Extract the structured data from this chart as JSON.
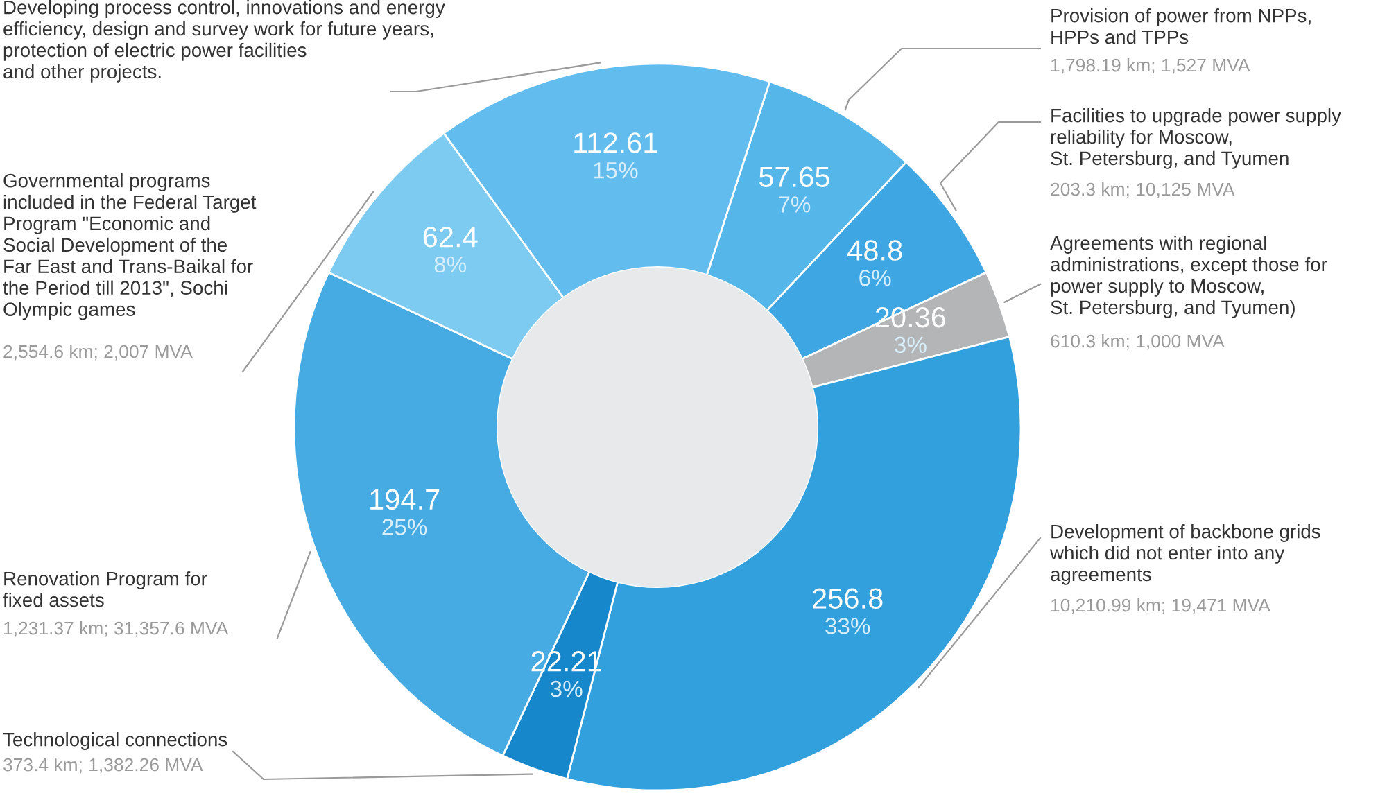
{
  "chart_data": {
    "type": "donut",
    "categories": [
      "Provision of power from NPPs,\nHPPs and TPPs",
      "Facilities to upgrade power supply\nreliability for Moscow,\nSt. Petersburg, and Tyumen",
      "Agreements with regional\nadministrations, except those for\npower supply to Moscow,\nSt. Petersburg, and Tyumen)",
      "Development of backbone grids\nwhich did not enter into any\nagreements",
      "Technological connections",
      "Renovation Program for\nfixed assets",
      "Governmental programs\nincluded in the Federal Target\nProgram \"Economic and\nSocial Development of the\nFar East and Trans-Baikal for\nthe Period till 2013\", Sochi\nOlympic games",
      "Developing process control, innovations and energy\nefficiency, design and survey work for future years,\nprotection of electric power facilities\nand other projects."
    ],
    "values": [
      7,
      6,
      3,
      33,
      3,
      25,
      8,
      15
    ],
    "colors": [
      "#55b6ea",
      "#3ea6e2",
      "#b3b5b7",
      "#31a0dc",
      "#1787cb",
      "#46aae3",
      "#7ecbf2",
      "#62bdee"
    ],
    "value_labels": [
      "57.65\n7%",
      "48.8\n6%",
      "20.36\n3%",
      "256.8\n33%",
      "22.21\n3%",
      "194.7\n25%",
      "62.4\n8%",
      "112.61\n15%"
    ],
    "annotations": [
      "1,798.19 km; 1,527 MVA",
      "203.3 km; 10,125 MVA",
      "610.3 km; 1,000 MVA",
      "10,210.99 km; 19,471 MVA",
      "373.4 km; 1,382.26 MVA",
      "1,231.37 km; 31,357.6 MVA",
      "2,554.6 km; 2,007 MVA"
    ]
  }
}
